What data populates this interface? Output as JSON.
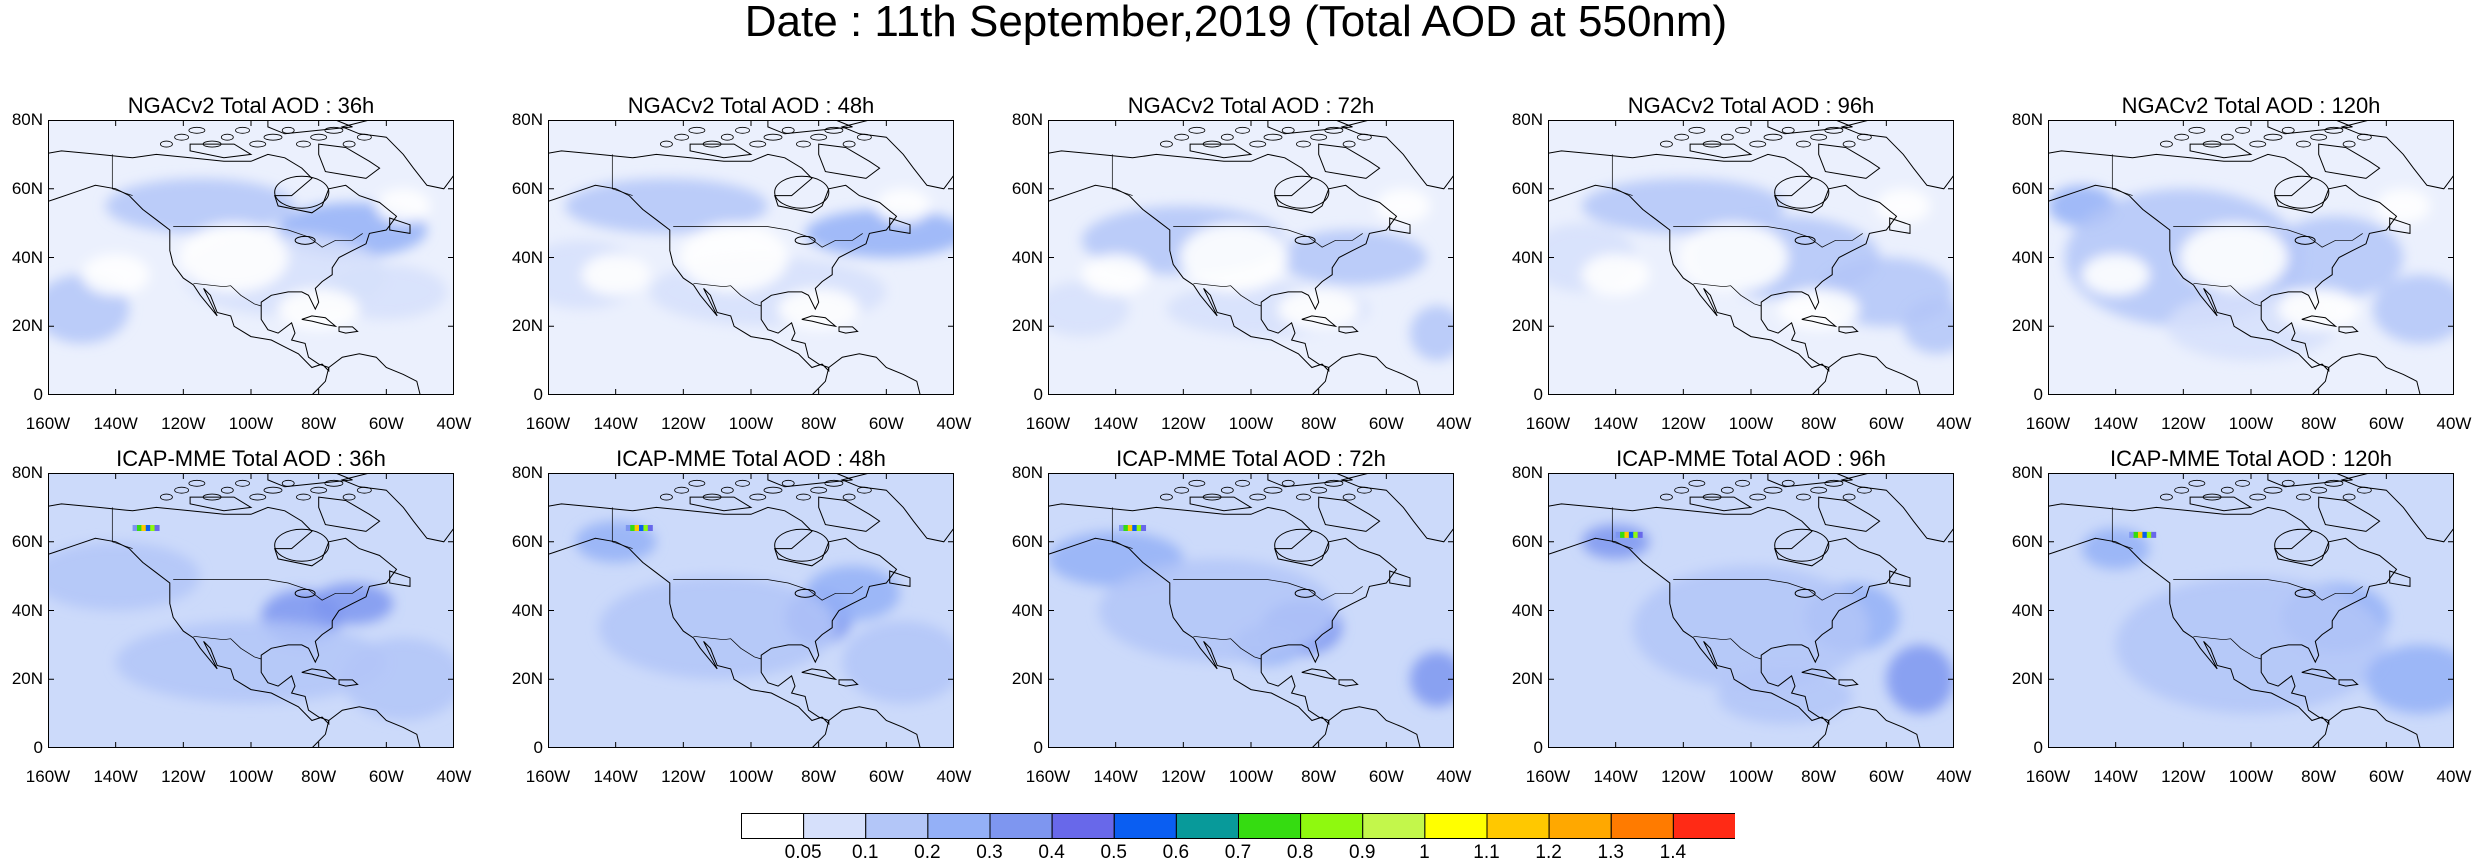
{
  "figure": {
    "title": "Date : 11th September,2019 (Total AOD at 550nm)"
  },
  "axes": {
    "lat_ticks": [
      "0",
      "20N",
      "40N",
      "60N",
      "80N"
    ],
    "lon_ticks": [
      "160W",
      "140W",
      "120W",
      "100W",
      "80W",
      "60W",
      "40W"
    ],
    "lat_range": [
      0,
      80
    ],
    "lon_range": [
      -160,
      -40
    ]
  },
  "panels": [
    {
      "title": "NGACv2 Total AOD : 36h",
      "model": "NGACv2",
      "lead": "36h"
    },
    {
      "title": "NGACv2 Total AOD : 48h",
      "model": "NGACv2",
      "lead": "48h"
    },
    {
      "title": "NGACv2 Total AOD : 72h",
      "model": "NGACv2",
      "lead": "72h"
    },
    {
      "title": "NGACv2 Total AOD : 96h",
      "model": "NGACv2",
      "lead": "96h"
    },
    {
      "title": "NGACv2 Total AOD : 120h",
      "model": "NGACv2",
      "lead": "120h"
    },
    {
      "title": "ICAP-MME Total AOD : 36h",
      "model": "ICAP-MME",
      "lead": "36h"
    },
    {
      "title": "ICAP-MME Total AOD : 48h",
      "model": "ICAP-MME",
      "lead": "48h"
    },
    {
      "title": "ICAP-MME Total AOD : 72h",
      "model": "ICAP-MME",
      "lead": "72h"
    },
    {
      "title": "ICAP-MME Total AOD : 96h",
      "model": "ICAP-MME",
      "lead": "96h"
    },
    {
      "title": "ICAP-MME Total AOD : 120h",
      "model": "ICAP-MME",
      "lead": "120h"
    }
  ],
  "colorbar": {
    "labels": [
      "0.05",
      "0.1",
      "0.2",
      "0.3",
      "0.4",
      "0.5",
      "0.6",
      "0.7",
      "0.8",
      "0.9",
      "1",
      "1.1",
      "1.2",
      "1.3",
      "1.4"
    ],
    "colors": [
      "#ffffff",
      "#d6e0fb",
      "#b3c6f8",
      "#94b0f7",
      "#7e96f0",
      "#6868ea",
      "#0a5ef2",
      "#089a9a",
      "#35dc11",
      "#8ff90f",
      "#c3f74b",
      "#ffff00",
      "#ffc800",
      "#ffa800",
      "#ff7b00",
      "#ff2a15"
    ]
  },
  "style": {
    "water_color": "#e6ecfc",
    "land_tint": "#d4dffb",
    "coast_color": "#000000"
  }
}
